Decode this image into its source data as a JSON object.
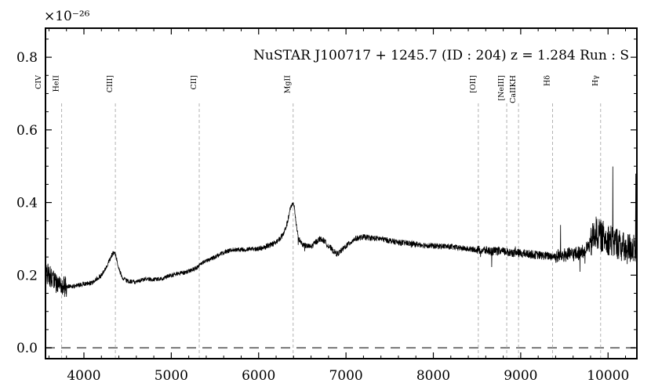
{
  "chart_data": {
    "type": "line",
    "title": "NuSTAR J100717 + 1245.7 (ID : 204)   z = 1.284   Run : S",
    "xlabel": "",
    "ylabel": "",
    "y_multiplier": "×10⁻²⁶",
    "xlim": [
      3560,
      10330
    ],
    "ylim": [
      -0.03,
      0.88
    ],
    "x_ticks": [
      4000,
      5000,
      6000,
      7000,
      8000,
      9000,
      10000
    ],
    "y_ticks": [
      0.0,
      0.2,
      0.4,
      0.6,
      0.8
    ],
    "x_tick_labels": [
      "4000",
      "5000",
      "6000",
      "7000",
      "8000",
      "9000",
      "10000"
    ],
    "y_tick_labels": [
      "0.0",
      "0.2",
      "0.4",
      "0.6",
      "0.8"
    ],
    "grid": false,
    "zero_line": {
      "y": 0.0,
      "style": "dashed",
      "color": "#777777"
    },
    "spectrum_color": "#000000",
    "line_marker_color": "#aaaaaa",
    "emission_lines": [
      {
        "label": "CIV",
        "x": 3540
      },
      {
        "label": "HeII",
        "x": 3745
      },
      {
        "label": "CIII]",
        "x": 4360
      },
      {
        "label": "CII]",
        "x": 5320
      },
      {
        "label": "MgII",
        "x": 6395
      },
      {
        "label": "[OII]",
        "x": 8515
      },
      {
        "label": "[NeIII]",
        "x": 8840
      },
      {
        "label": "CaIIKH",
        "x": 8975
      },
      {
        "label": "Hδ",
        "x": 9365
      },
      {
        "label": "Hγ",
        "x": 9915
      }
    ],
    "series": [
      {
        "x": [
          3560,
          3600,
          3650,
          3700,
          3750,
          3800,
          3900,
          4000,
          4100,
          4200,
          4250,
          4300,
          4330,
          4350,
          4370,
          4400,
          4450,
          4500,
          4600,
          4700,
          4800,
          4900,
          5000,
          5100,
          5200,
          5300,
          5400,
          5500,
          5600,
          5700,
          5800,
          5900,
          6000,
          6100,
          6200,
          6280,
          6330,
          6360,
          6390,
          6410,
          6430,
          6460,
          6500,
          6550,
          6600,
          6650,
          6700,
          6750,
          6800,
          6850,
          6900,
          6950,
          7000,
          7100,
          7200,
          7300,
          7400,
          7500,
          7600,
          7700,
          7800,
          7900,
          8000,
          8100,
          8200,
          8300,
          8400,
          8500,
          8600,
          8700,
          8800,
          8900,
          9000,
          9100,
          9200,
          9300,
          9400,
          9500,
          9600,
          9700,
          9800,
          9850,
          9900,
          10000,
          10100,
          10200,
          10300
        ],
        "y": [
          0.21,
          0.2,
          0.185,
          0.175,
          0.17,
          0.168,
          0.17,
          0.175,
          0.18,
          0.2,
          0.22,
          0.245,
          0.26,
          0.262,
          0.25,
          0.215,
          0.19,
          0.183,
          0.18,
          0.19,
          0.188,
          0.19,
          0.2,
          0.205,
          0.21,
          0.222,
          0.24,
          0.25,
          0.262,
          0.27,
          0.27,
          0.272,
          0.272,
          0.28,
          0.29,
          0.31,
          0.345,
          0.38,
          0.4,
          0.385,
          0.34,
          0.3,
          0.285,
          0.28,
          0.278,
          0.29,
          0.3,
          0.295,
          0.28,
          0.268,
          0.258,
          0.268,
          0.28,
          0.3,
          0.305,
          0.302,
          0.3,
          0.295,
          0.29,
          0.288,
          0.285,
          0.283,
          0.28,
          0.28,
          0.278,
          0.275,
          0.272,
          0.27,
          0.268,
          0.266,
          0.265,
          0.262,
          0.26,
          0.258,
          0.255,
          0.253,
          0.252,
          0.255,
          0.258,
          0.262,
          0.285,
          0.32,
          0.31,
          0.3,
          0.29,
          0.27,
          0.28
        ]
      }
    ]
  }
}
